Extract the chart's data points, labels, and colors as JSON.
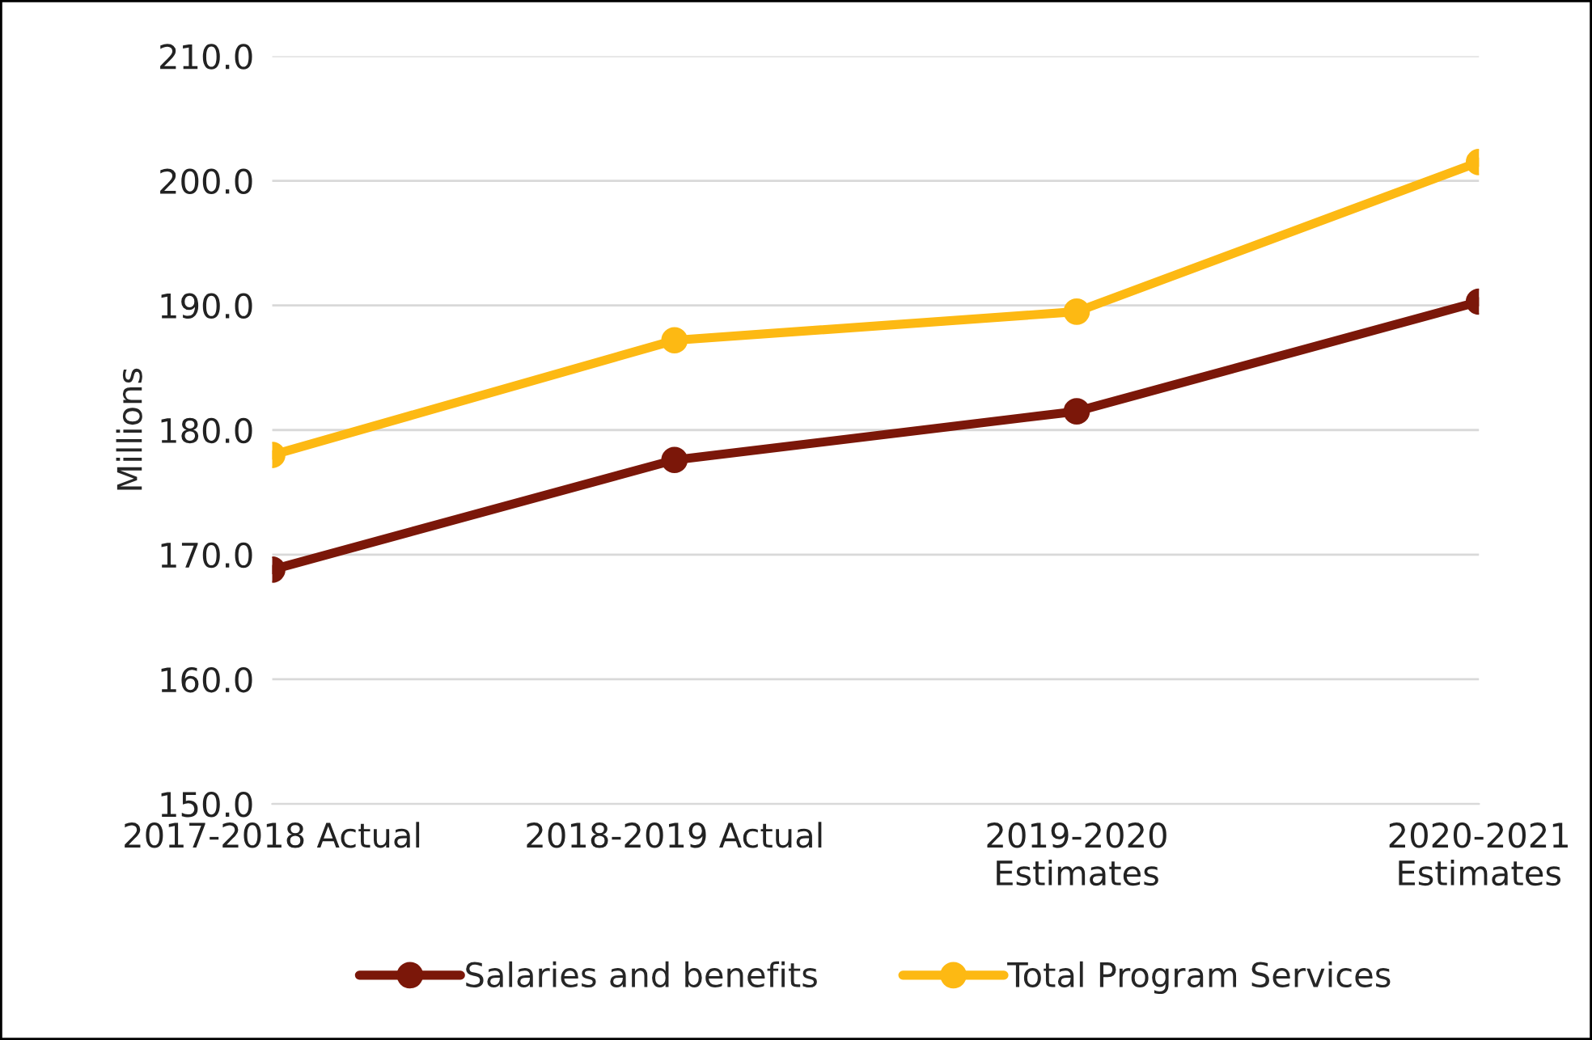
{
  "chart_data": {
    "type": "line",
    "ylabel": "Millions",
    "categories": [
      "2017-2018 Actual",
      "2018-2019 Actual",
      "2019-2020\nEstimates",
      "2020-2021\nEstimates"
    ],
    "series": [
      {
        "name": "Salaries and benefits",
        "color": "#7b1709",
        "values": [
          168.8,
          177.6,
          181.5,
          190.3
        ]
      },
      {
        "name": "Total Program Services",
        "color": "#fdb913",
        "values": [
          178.0,
          187.2,
          189.5,
          201.5
        ]
      }
    ],
    "ylim": [
      150,
      210
    ],
    "yticks": [
      {
        "value": 150,
        "label": "150.0"
      },
      {
        "value": 160,
        "label": "160.0"
      },
      {
        "value": 170,
        "label": "170.0"
      },
      {
        "value": 180,
        "label": "180.0"
      },
      {
        "value": 190,
        "label": "190.0"
      },
      {
        "value": 200,
        "label": "200.0"
      },
      {
        "value": 210,
        "label": "210.0"
      }
    ],
    "grid": "y",
    "legend": "bottom",
    "marker": "circle",
    "line_style": "solid"
  }
}
